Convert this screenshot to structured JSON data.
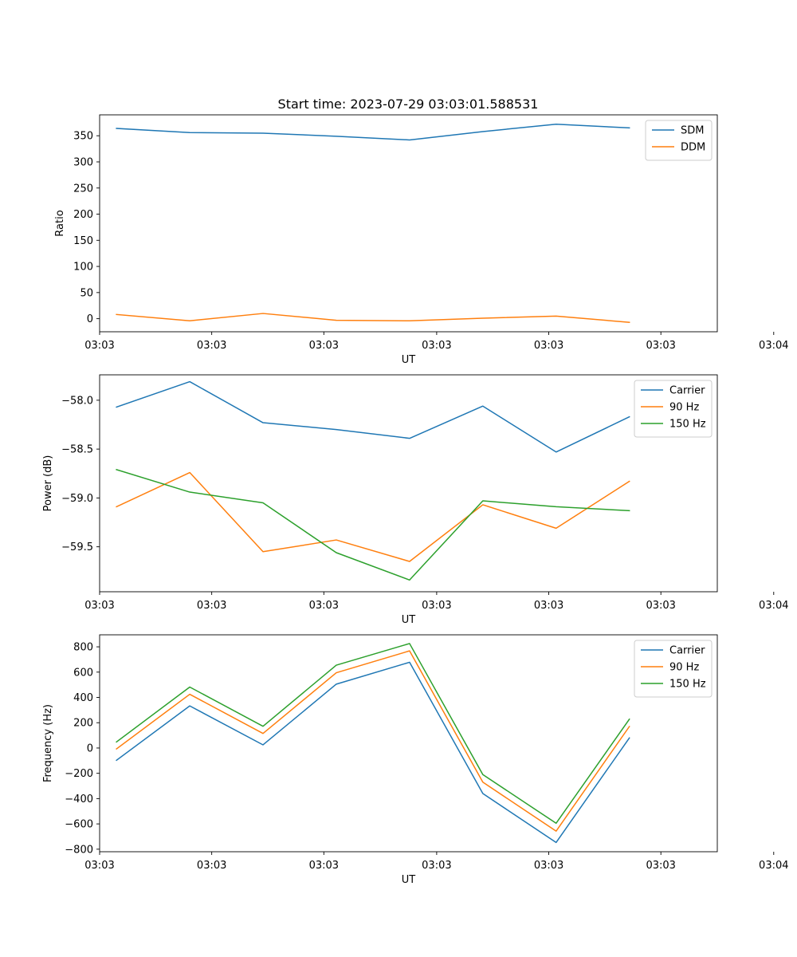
{
  "figure": {
    "title": "Start time: 2023-07-29 03:03:01.588531"
  },
  "chart_data": [
    {
      "type": "line",
      "title": "Start time: 2023-07-29 03:03:01.588531",
      "xlabel": "UT",
      "ylabel": "Ratio",
      "x": [
        1,
        2,
        3,
        4,
        5,
        6,
        7,
        8
      ],
      "xlim": [
        0.77,
        9.2
      ],
      "xtick_positions": [
        0.77,
        2.3,
        3.83,
        5.37,
        6.9,
        8.43,
        9.97
      ],
      "xtick_labels": [
        "03:03",
        "03:03",
        "03:03",
        "03:03",
        "03:03",
        "03:03",
        "03:04"
      ],
      "ylim": [
        -25,
        390
      ],
      "yticks": [
        0,
        50,
        100,
        150,
        200,
        250,
        300,
        350
      ],
      "ytick_labels": [
        "0",
        "50",
        "100",
        "150",
        "200",
        "250",
        "300",
        "350"
      ],
      "legend_position": "top-right",
      "series": [
        {
          "name": "SDM",
          "color": "#1f77b4",
          "values": [
            364,
            356,
            355,
            349,
            342,
            358,
            372,
            365
          ]
        },
        {
          "name": "DDM",
          "color": "#ff7f0e",
          "values": [
            8,
            -4,
            10,
            -3,
            -4,
            1,
            5,
            -7
          ]
        }
      ]
    },
    {
      "type": "line",
      "title": "",
      "xlabel": "UT",
      "ylabel": "Power (dB)",
      "x": [
        1,
        2,
        3,
        4,
        5,
        6,
        7,
        8
      ],
      "xlim": [
        0.77,
        9.2
      ],
      "xtick_positions": [
        0.77,
        2.3,
        3.83,
        5.37,
        6.9,
        8.43,
        9.97
      ],
      "xtick_labels": [
        "03:03",
        "03:03",
        "03:03",
        "03:03",
        "03:03",
        "03:03",
        "03:04"
      ],
      "ylim": [
        -59.96,
        -57.74
      ],
      "yticks": [
        -59.5,
        -59.0,
        -58.5,
        -58.0
      ],
      "ytick_labels": [
        "−59.5",
        "−59.0",
        "−58.5",
        "−58.0"
      ],
      "legend_position": "top-right",
      "series": [
        {
          "name": "Carrier",
          "color": "#1f77b4",
          "values": [
            -58.07,
            -57.81,
            -58.23,
            -58.3,
            -58.39,
            -58.06,
            -58.53,
            -58.17
          ]
        },
        {
          "name": "90 Hz",
          "color": "#ff7f0e",
          "values": [
            -59.09,
            -58.74,
            -59.55,
            -59.43,
            -59.65,
            -59.07,
            -59.31,
            -58.83
          ]
        },
        {
          "name": "150 Hz",
          "color": "#2ca02c",
          "values": [
            -58.71,
            -58.94,
            -59.05,
            -59.56,
            -59.84,
            -59.03,
            -59.09,
            -59.13
          ]
        }
      ]
    },
    {
      "type": "line",
      "title": "",
      "xlabel": "UT",
      "ylabel": "Frequency (Hz)",
      "x": [
        1,
        2,
        3,
        4,
        5,
        6,
        7,
        8
      ],
      "xlim": [
        0.77,
        9.2
      ],
      "xtick_positions": [
        0.77,
        2.3,
        3.83,
        5.37,
        6.9,
        8.43,
        9.97
      ],
      "xtick_labels": [
        "03:03",
        "03:03",
        "03:03",
        "03:03",
        "03:03",
        "03:03",
        "03:04"
      ],
      "ylim": [
        -820,
        895
      ],
      "yticks": [
        -800,
        -600,
        -400,
        -200,
        0,
        200,
        400,
        600,
        800
      ],
      "ytick_labels": [
        "−800",
        "−600",
        "−400",
        "−200",
        "0",
        "200",
        "400",
        "600",
        "800"
      ],
      "legend_position": "top-right",
      "series": [
        {
          "name": "Carrier",
          "color": "#1f77b4",
          "values": [
            -97,
            333,
            25,
            505,
            678,
            -360,
            -747,
            80
          ]
        },
        {
          "name": "90 Hz",
          "color": "#ff7f0e",
          "values": [
            -7,
            425,
            115,
            595,
            768,
            -270,
            -657,
            170
          ]
        },
        {
          "name": "150 Hz",
          "color": "#2ca02c",
          "values": [
            48,
            482,
            172,
            655,
            826,
            -210,
            -595,
            228
          ]
        }
      ]
    }
  ]
}
